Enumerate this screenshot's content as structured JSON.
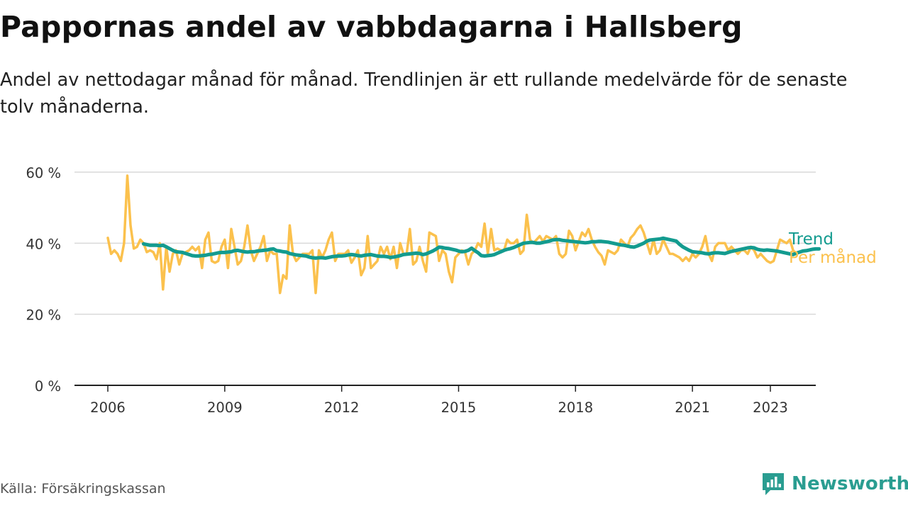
{
  "header": {
    "title": "Pappornas andel av vabbdagarna i Hallsberg",
    "subtitle": "Andel av nettodagar månad för månad. Trendlinjen är ett rullande medelvärde för de senaste tolv månaderna."
  },
  "footer": {
    "source": "Källa: Försäkringskassan",
    "brand": "Newsworthy",
    "brand_icon": "bar-chart-speech-bubble-icon"
  },
  "colors": {
    "monthly": "#fbc14d",
    "trend": "#139b8f",
    "grid": "#d9d9d9",
    "axis": "#222222"
  },
  "chart_data": {
    "type": "line",
    "x_unit": "year (decimal, monthly steps)",
    "ylim": [
      0,
      60
    ],
    "xlim": [
      2005.5,
      2024.6
    ],
    "y_ticks": [
      0,
      20,
      40,
      60
    ],
    "y_tick_labels": [
      "0 %",
      "20 %",
      "40 %",
      "60 %"
    ],
    "x_ticks": [
      2006,
      2009,
      2012,
      2015,
      2018,
      2021,
      2023
    ],
    "x_tick_labels": [
      "2006",
      "2009",
      "2012",
      "2015",
      "2018",
      "2021",
      "2023"
    ],
    "grid": true,
    "legend": "inline labels at right end of lines",
    "series": [
      {
        "name": "Per månad",
        "color": "#fbc14d",
        "start": 2006.0,
        "step_months": 1,
        "values": [
          41.5,
          37,
          38,
          37,
          35,
          40,
          59,
          45,
          38.5,
          39,
          41,
          40,
          37.5,
          38,
          37.5,
          35.5,
          40,
          27,
          39,
          32,
          37,
          38,
          34,
          37,
          37.5,
          38,
          39,
          38,
          39,
          33,
          41,
          43,
          35,
          34.5,
          35,
          39,
          41,
          33,
          44,
          39,
          34,
          35,
          39,
          45,
          38,
          35,
          37,
          39,
          42,
          35,
          38,
          37,
          37,
          26,
          31,
          30,
          45,
          37,
          35,
          36,
          37,
          37,
          37,
          38,
          26,
          38,
          36,
          38,
          41,
          43,
          35,
          37,
          37,
          37,
          38,
          34.5,
          36,
          38,
          31,
          33,
          42,
          33,
          34,
          35,
          39,
          37,
          39,
          35.5,
          39,
          33,
          40,
          37,
          37,
          44,
          34,
          35,
          39,
          35,
          32,
          43,
          42.5,
          42,
          35,
          38,
          37,
          32,
          29,
          36,
          37,
          38,
          37.5,
          34,
          37,
          38,
          40,
          39,
          45.5,
          37,
          44,
          38,
          38.5,
          38,
          38,
          41,
          40,
          40,
          41,
          37,
          38,
          48,
          41,
          40,
          41,
          42,
          40.5,
          42,
          41.5,
          41,
          42,
          37,
          36,
          37,
          43.5,
          42,
          38,
          40.5,
          43,
          42,
          44,
          41,
          39,
          37.5,
          36.5,
          34,
          38,
          37.5,
          37,
          38,
          41,
          40,
          39,
          41.5,
          42.5,
          44,
          45,
          43,
          40,
          37,
          41,
          37,
          38,
          41,
          39,
          37,
          37,
          36.5,
          36,
          35,
          36,
          35,
          37,
          36,
          37,
          39,
          42,
          37,
          35,
          39,
          40,
          40,
          40,
          38,
          39,
          38,
          37,
          38,
          38,
          37,
          39,
          38,
          36,
          37,
          36,
          35,
          34.5,
          35,
          38,
          41,
          40.5,
          40,
          41,
          38,
          37
        ]
      },
      {
        "name": "Trend",
        "color": "#139b8f",
        "start": 2006.917,
        "step_months": 1,
        "values": [
          39.8,
          39.6,
          39.4,
          39.4,
          39.4,
          39.3,
          39.4,
          39.0,
          38.5,
          38.0,
          37.6,
          37.5,
          37.4,
          37.1,
          36.8,
          36.5,
          36.4,
          36.4,
          36.5,
          36.6,
          36.8,
          36.9,
          37.1,
          37.3,
          37.4,
          37.4,
          37.5,
          37.6,
          37.9,
          38.0,
          37.8,
          37.6,
          37.5,
          37.6,
          37.6,
          37.8,
          37.9,
          38.0,
          38.1,
          38.3,
          38.4,
          37.9,
          37.8,
          37.6,
          37.5,
          37.1,
          36.9,
          36.7,
          36.6,
          36.5,
          36.4,
          36.1,
          35.9,
          35.8,
          35.9,
          35.9,
          35.8,
          36.0,
          36.2,
          36.3,
          36.4,
          36.4,
          36.5,
          36.7,
          36.8,
          36.7,
          36.5,
          36.4,
          36.6,
          36.7,
          36.8,
          36.6,
          36.4,
          36.3,
          36.3,
          36.2,
          36.0,
          36.1,
          36.3,
          36.5,
          36.8,
          36.9,
          37.0,
          37.1,
          37.2,
          37.1,
          36.8,
          37.0,
          37.4,
          37.8,
          38.3,
          38.9,
          38.8,
          38.6,
          38.5,
          38.3,
          38.1,
          37.8,
          37.6,
          37.7,
          38.0,
          38.6,
          37.9,
          37.3,
          36.5,
          36.4,
          36.5,
          36.6,
          36.8,
          37.2,
          37.6,
          38.0,
          38.3,
          38.5,
          38.8,
          39.2,
          39.6,
          40.0,
          40.1,
          40.2,
          40.2,
          40.0,
          40.0,
          40.2,
          40.4,
          40.6,
          40.9,
          41.0,
          41.0,
          40.8,
          40.7,
          40.6,
          40.5,
          40.4,
          40.3,
          40.2,
          40.1,
          40.2,
          40.4,
          40.4,
          40.5,
          40.5,
          40.4,
          40.3,
          40.1,
          39.9,
          39.7,
          39.5,
          39.4,
          39.2,
          39.0,
          38.9,
          39.2,
          39.6,
          40.0,
          40.6,
          40.9,
          41.0,
          41.1,
          41.2,
          41.4,
          41.2,
          41.0,
          40.8,
          40.6,
          39.7,
          39.0,
          38.5,
          38.0,
          37.6,
          37.5,
          37.4,
          37.3,
          37.1,
          37.0,
          37.2,
          37.3,
          37.3,
          37.2,
          37.1,
          37.4,
          37.7,
          37.9,
          38.1,
          38.3,
          38.5,
          38.7,
          38.8,
          38.7,
          38.3,
          38.1,
          38.0,
          38.1,
          38.0,
          37.9,
          37.8,
          37.6,
          37.4,
          37.2,
          37.0,
          36.8,
          37.2,
          37.5,
          37.8,
          37.9,
          38.1,
          38.3,
          38.4,
          38.4
        ]
      }
    ]
  }
}
